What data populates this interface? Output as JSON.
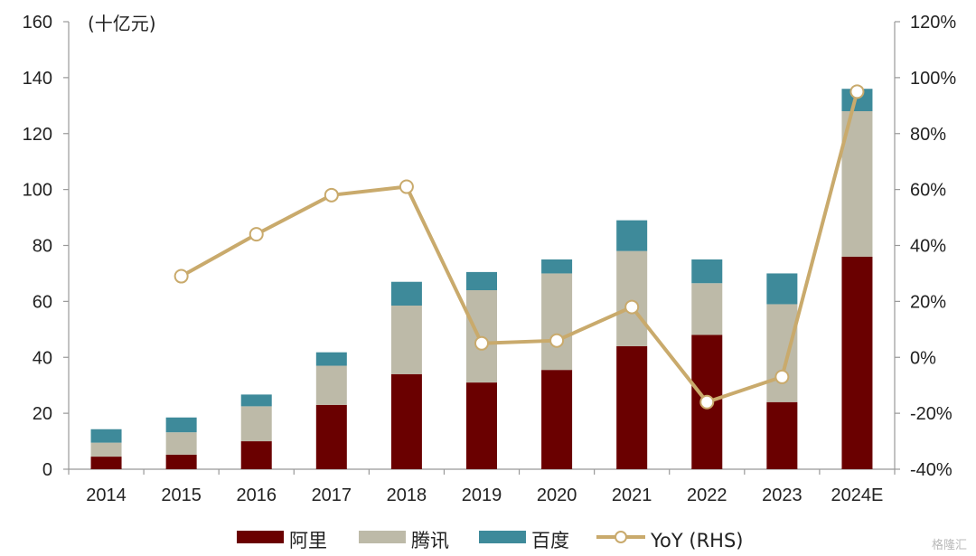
{
  "chart_data": {
    "type": "bar",
    "stacked": true,
    "unit_label": "(十亿元)",
    "categories": [
      "2014",
      "2015",
      "2016",
      "2017",
      "2018",
      "2019",
      "2020",
      "2021",
      "2022",
      "2023",
      "2024E"
    ],
    "series": [
      {
        "name": "阿里",
        "color": "#6a0000",
        "values": [
          4.5,
          5.2,
          10,
          23,
          34,
          31,
          35.5,
          44,
          48,
          24,
          76
        ]
      },
      {
        "name": "腾讯",
        "color": "#bdbaa8",
        "values": [
          5,
          8,
          12.5,
          14,
          24.5,
          33,
          34.5,
          34,
          18.5,
          35,
          52
        ]
      },
      {
        "name": "百度",
        "color": "#3e8a9a",
        "values": [
          4.8,
          5.3,
          4.2,
          4.8,
          8.5,
          6.5,
          5,
          11,
          8.5,
          11,
          8
        ]
      }
    ],
    "line": {
      "name": "YoY (RHS)",
      "color": "#c9aa6c",
      "axis": "right",
      "values": [
        null,
        29,
        44,
        58,
        61,
        5,
        6,
        18,
        -16,
        -7,
        95
      ]
    },
    "y_left": {
      "min": 0,
      "max": 160,
      "ticks": [
        "0",
        "20",
        "40",
        "60",
        "80",
        "100",
        "120",
        "140",
        "160"
      ]
    },
    "y_right": {
      "min": -40,
      "max": 120,
      "ticks": [
        "-40%",
        "-20%",
        "0%",
        "20%",
        "40%",
        "60%",
        "80%",
        "100%",
        "120%"
      ]
    },
    "legend_position": "bottom",
    "grid": false
  },
  "watermark": "格隆汇"
}
